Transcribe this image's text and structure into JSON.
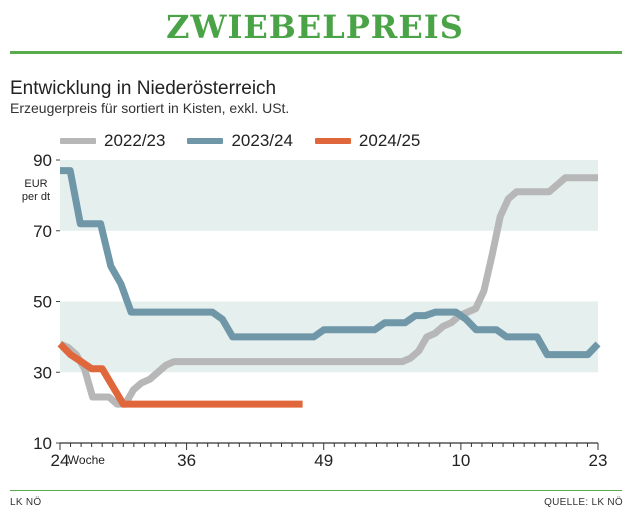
{
  "header": {
    "title": "ZWIEBELPREIS",
    "accent_color": "#4aa347"
  },
  "footer": {
    "source_left": "LK NÖ",
    "source_right": "QUELLE: LK NÖ"
  },
  "chart_data": {
    "type": "line",
    "title": "Entwicklung in Niederösterreich",
    "subtitle": "Erzeugerpreis für sortiert in Kisten, exkl. USt.",
    "ylabel": "EUR\nper dt",
    "xlabel": "Woche",
    "ylim": [
      10,
      90
    ],
    "yticks": [
      10,
      30,
      50,
      70,
      90
    ],
    "bands": [
      [
        30,
        50
      ],
      [
        70,
        90
      ]
    ],
    "band_color": "#e4efee",
    "x_index_range": [
      0,
      51
    ],
    "xtick_positions": [
      0,
      12,
      25,
      38,
      51
    ],
    "xtick_labels": [
      "24",
      "36",
      "49",
      "10",
      "23"
    ],
    "legend_position": "top",
    "series": [
      {
        "name": "2022/23",
        "color": "#b7b7b7",
        "values": [
          38,
          37,
          35,
          31,
          23,
          23,
          23,
          21,
          21,
          25,
          27,
          28,
          30,
          32,
          33,
          33,
          33,
          33,
          33,
          33,
          33,
          33,
          33,
          33,
          33,
          33,
          33,
          33,
          33,
          33,
          33,
          33,
          33,
          33,
          33,
          33,
          33,
          33,
          33,
          33,
          33,
          33,
          33,
          34,
          36,
          40,
          41,
          43,
          44,
          46,
          47,
          48,
          53,
          63,
          74,
          79,
          81,
          81,
          81,
          81,
          81,
          83,
          85,
          85,
          85,
          85,
          85
        ]
      },
      {
        "name": "2023/24",
        "color": "#6f97a8",
        "values": [
          87,
          87,
          72,
          72,
          72,
          60,
          55,
          47,
          47,
          47,
          47,
          47,
          47,
          47,
          47,
          47,
          45,
          40,
          40,
          40,
          40,
          40,
          40,
          40,
          40,
          40,
          42,
          42,
          42,
          42,
          42,
          42,
          44,
          44,
          44,
          46,
          46,
          47,
          47,
          47,
          45,
          42,
          42,
          42,
          40,
          40,
          40,
          40,
          35,
          35,
          35,
          35,
          35,
          38
        ]
      },
      {
        "name": "2024/25",
        "color": "#e0673c",
        "values": [
          38,
          35,
          33,
          31,
          31,
          26,
          21,
          21,
          21,
          21,
          21,
          21,
          21,
          21,
          21,
          21,
          21,
          21,
          21,
          21,
          21,
          21,
          21,
          21
        ]
      }
    ]
  }
}
